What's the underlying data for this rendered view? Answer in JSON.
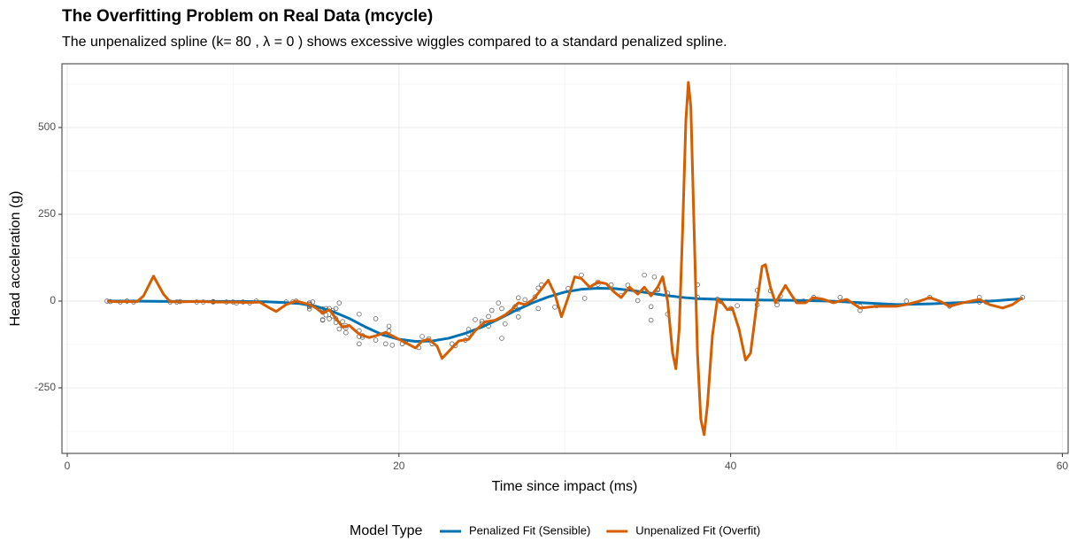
{
  "chart_data": {
    "type": "line",
    "title": "The Overfitting Problem on Real Data (mcycle)",
    "subtitle": "The unpenalized spline (k= 80 ,  λ = 0 ) shows excessive wiggles compared to a standard penalized spline.",
    "x_label": "Time since impact (ms)",
    "y_label": "Head acceleration (g)",
    "xlim": [
      -0.32,
      60.35
    ],
    "ylim": [
      -438.8,
      683.7
    ],
    "xticks": [
      0,
      20,
      40,
      60
    ],
    "yticks": [
      -250,
      0,
      250,
      500
    ],
    "xminor": [
      10,
      30,
      50
    ],
    "yminor": [
      -375,
      -125,
      125,
      375,
      625
    ],
    "grid": true,
    "legend_title": "Model Type",
    "legend_position": "bottom",
    "points": {
      "color": "#555555",
      "x": [
        2.4,
        2.6,
        3.2,
        3.6,
        4.0,
        6.2,
        6.6,
        6.8,
        7.8,
        8.2,
        8.8,
        8.8,
        9.6,
        10.0,
        10.2,
        10.6,
        11.0,
        11.4,
        13.2,
        13.6,
        13.8,
        14.6,
        14.6,
        14.6,
        14.6,
        14.6,
        14.6,
        14.8,
        15.4,
        15.4,
        15.4,
        15.4,
        15.6,
        15.6,
        15.8,
        15.8,
        16.0,
        16.0,
        16.2,
        16.2,
        16.2,
        16.4,
        16.4,
        16.6,
        16.8,
        16.8,
        16.8,
        17.6,
        17.6,
        17.6,
        17.6,
        17.8,
        17.8,
        18.6,
        18.6,
        19.2,
        19.4,
        19.4,
        19.6,
        20.2,
        20.4,
        21.2,
        21.4,
        21.8,
        22.0,
        23.2,
        23.4,
        24.0,
        24.2,
        24.2,
        24.6,
        25.0,
        25.0,
        25.4,
        25.4,
        25.6,
        26.0,
        26.2,
        26.2,
        26.4,
        27.0,
        27.2,
        27.2,
        27.2,
        27.6,
        28.2,
        28.4,
        28.4,
        28.6,
        29.4,
        30.2,
        31.0,
        31.2,
        32.0,
        32.0,
        32.8,
        33.4,
        33.8,
        34.4,
        34.8,
        35.2,
        35.2,
        35.4,
        35.6,
        35.6,
        36.2,
        36.2,
        38.0,
        38.0,
        39.2,
        39.4,
        40.0,
        40.4,
        41.6,
        41.6,
        42.4,
        42.8,
        42.8,
        43.0,
        44.0,
        44.4,
        45.0,
        46.6,
        47.8,
        47.8,
        48.8,
        50.6,
        52.0,
        53.2,
        55.0,
        55.0,
        55.4,
        57.6
      ],
      "y": [
        0.0,
        -1.3,
        -2.7,
        0.0,
        -2.7,
        -2.7,
        -2.7,
        -1.3,
        -2.7,
        -2.7,
        -1.3,
        -2.7,
        -2.7,
        -2.7,
        -5.4,
        -2.7,
        -5.4,
        0.0,
        -2.7,
        -2.7,
        0.0,
        -13.3,
        -5.4,
        -5.4,
        -9.3,
        -16.0,
        -22.8,
        -2.7,
        -22.8,
        -32.1,
        -53.5,
        -54.9,
        -40.2,
        -21.5,
        -21.5,
        -50.8,
        -42.9,
        -26.8,
        -21.5,
        -50.8,
        -61.7,
        -5.4,
        -80.4,
        -59.0,
        -71.0,
        -91.1,
        -77.7,
        -37.5,
        -85.6,
        -123.1,
        -101.9,
        -99.1,
        -104.4,
        -112.5,
        -50.8,
        -123.1,
        -85.6,
        -72.3,
        -127.2,
        -123.1,
        -117.9,
        -134.0,
        -101.9,
        -108.4,
        -123.1,
        -123.1,
        -128.5,
        -112.5,
        -95.1,
        -81.8,
        -53.5,
        -64.4,
        -57.6,
        -72.3,
        -44.3,
        -26.8,
        -5.4,
        -107.1,
        -21.5,
        -65.6,
        -16.0,
        -45.6,
        -24.2,
        9.5,
        4.0,
        12.0,
        -21.5,
        37.5,
        46.9,
        -17.4,
        36.2,
        75.0,
        8.1,
        54.9,
        48.2,
        46.9,
        16.0,
        45.6,
        1.3,
        75.0,
        -16.0,
        -54.9,
        69.6,
        34.8,
        32.1,
        -37.5,
        22.8,
        46.9,
        10.7,
        5.4,
        -1.3,
        -21.5,
        -13.3,
        30.8,
        -10.7,
        29.4,
        0.0,
        -10.7,
        14.7,
        -1.3,
        0.0,
        10.7,
        10.7,
        -26.8,
        -14.7,
        -13.3,
        0.0,
        10.7,
        -14.7,
        -2.7,
        10.7,
        -2.7,
        10.7
      ]
    },
    "series": [
      {
        "name": "Penalized Fit (Sensible)",
        "color": "#0072B2",
        "x": [
          2.4,
          4,
          6,
          8,
          10,
          12,
          13,
          14,
          15,
          16,
          17,
          18,
          19,
          20,
          21,
          22,
          23,
          24,
          25,
          26,
          27,
          28,
          29,
          30,
          31,
          32,
          33,
          34,
          35,
          36,
          37,
          38,
          40,
          42,
          44,
          46,
          48,
          50,
          52,
          54,
          56,
          57.6
        ],
        "values": [
          0,
          0,
          -1,
          -1,
          -1,
          -2,
          -4,
          -7,
          -15,
          -30,
          -50,
          -75,
          -97,
          -110,
          -116,
          -115,
          -107,
          -93,
          -75,
          -52,
          -28,
          -6,
          12,
          26,
          34,
          37,
          36,
          31,
          24,
          17,
          11,
          7,
          4,
          3,
          2,
          0,
          -5,
          -10,
          -8,
          -4,
          1,
          7
        ]
      },
      {
        "name": "Unpenalized Fit (Overfit)",
        "color": "#D55E00",
        "x": [
          2.4,
          3,
          3.6,
          4.2,
          4.6,
          5.2,
          5.8,
          6.2,
          7,
          8,
          9,
          10,
          11,
          11.6,
          12.2,
          12.6,
          13.2,
          13.8,
          14.6,
          15,
          15.4,
          15.8,
          16.2,
          16.6,
          17,
          17.6,
          18.2,
          18.6,
          19.2,
          19.8,
          20.4,
          21,
          21.4,
          21.8,
          22.3,
          22.6,
          23.2,
          23.6,
          24.2,
          24.6,
          25.2,
          25.8,
          26.4,
          26.8,
          27.2,
          27.6,
          28.1,
          28.6,
          29,
          29.4,
          29.8,
          30.2,
          30.6,
          31,
          31.5,
          32,
          32.5,
          33,
          33.4,
          33.9,
          34.4,
          34.8,
          35.2,
          35.6,
          35.9,
          36.2,
          36.5,
          36.7,
          36.9,
          37.1,
          37.3,
          37.45,
          37.6,
          37.8,
          38,
          38.2,
          38.4,
          38.6,
          38.9,
          39.2,
          39.5,
          39.8,
          40.1,
          40.5,
          40.9,
          41.2,
          41.6,
          41.9,
          42.1,
          42.4,
          42.7,
          43,
          43.3,
          43.7,
          44,
          44.5,
          45,
          45.6,
          46.2,
          47,
          47.8,
          48.8,
          50,
          50.6,
          51.4,
          52,
          52.6,
          53.2,
          54,
          55,
          55.6,
          56.4,
          57,
          57.6
        ],
        "values": [
          0,
          -2,
          -1,
          -2,
          15,
          72,
          20,
          -2,
          -2,
          -1,
          -3,
          -3,
          -4,
          -3,
          -20,
          -30,
          -10,
          0,
          -10,
          -20,
          -35,
          -25,
          -50,
          -75,
          -70,
          -95,
          -105,
          -100,
          -90,
          -105,
          -120,
          -135,
          -115,
          -110,
          -130,
          -165,
          -135,
          -115,
          -110,
          -85,
          -60,
          -55,
          -40,
          -25,
          -5,
          -10,
          5,
          35,
          60,
          20,
          -45,
          10,
          70,
          65,
          40,
          55,
          50,
          25,
          10,
          40,
          20,
          40,
          15,
          40,
          70,
          0,
          -150,
          -195,
          -80,
          200,
          520,
          630,
          560,
          200,
          -150,
          -340,
          -385,
          -300,
          -100,
          5,
          -5,
          -25,
          -20,
          -80,
          -170,
          -150,
          0,
          100,
          105,
          40,
          -5,
          20,
          45,
          15,
          -5,
          -5,
          10,
          5,
          -5,
          5,
          -20,
          -15,
          -15,
          -10,
          0,
          10,
          0,
          -15,
          -5,
          5,
          -10,
          -20,
          -10,
          10
        ]
      }
    ]
  }
}
